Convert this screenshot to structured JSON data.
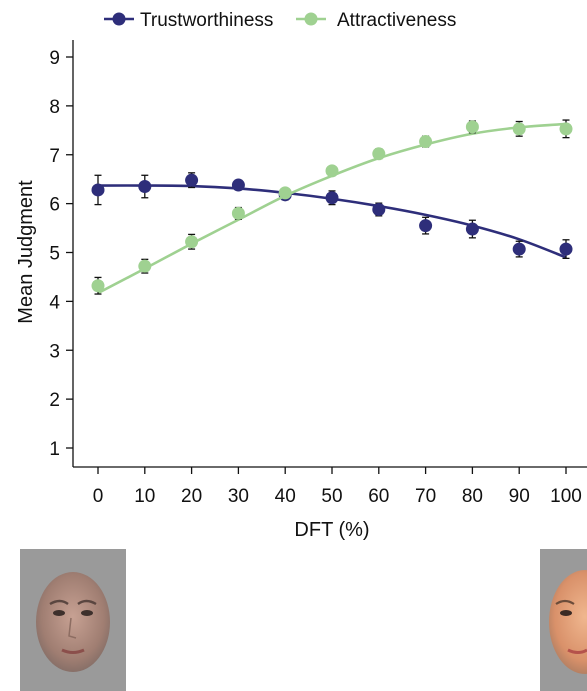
{
  "chart_data": {
    "type": "line",
    "title": "",
    "xlabel": "DFT (%)",
    "ylabel": "Mean Judgment",
    "xlim": [
      0,
      100
    ],
    "ylim": [
      1,
      9
    ],
    "xticks": [
      "0",
      "10",
      "20",
      "30",
      "40",
      "50",
      "60",
      "70",
      "80",
      "90",
      "100"
    ],
    "yticks": [
      "1",
      "2",
      "3",
      "4",
      "5",
      "6",
      "7",
      "8",
      "9"
    ],
    "x": [
      0,
      10,
      20,
      30,
      40,
      50,
      60,
      70,
      80,
      90,
      100
    ],
    "legend_position": "top",
    "grid": false,
    "series": [
      {
        "name": "Trustworthiness",
        "color": "#2e2e7a",
        "values": [
          6.28,
          6.35,
          6.48,
          6.38,
          6.18,
          6.12,
          5.88,
          5.55,
          5.48,
          5.07,
          5.07
        ],
        "error": [
          0.3,
          0.23,
          0.15,
          0.09,
          0.1,
          0.14,
          0.13,
          0.17,
          0.18,
          0.16,
          0.19
        ],
        "fit": [
          6.37,
          6.37,
          6.36,
          6.31,
          6.22,
          6.1,
          5.95,
          5.77,
          5.55,
          5.27,
          4.9
        ]
      },
      {
        "name": "Attractiveness",
        "color": "#9fd191",
        "values": [
          4.32,
          4.72,
          5.22,
          5.8,
          6.22,
          6.67,
          7.02,
          7.27,
          7.57,
          7.53,
          7.53
        ],
        "error": [
          0.17,
          0.14,
          0.15,
          0.12,
          0.09,
          0.08,
          0.1,
          0.11,
          0.12,
          0.15,
          0.18
        ],
        "fit": [
          4.17,
          4.67,
          5.18,
          5.67,
          6.16,
          6.57,
          6.93,
          7.21,
          7.43,
          7.56,
          7.63
        ]
      }
    ]
  },
  "colors": {
    "axis": "#111111",
    "background": "#ffffff",
    "photo_background": "#999999"
  }
}
